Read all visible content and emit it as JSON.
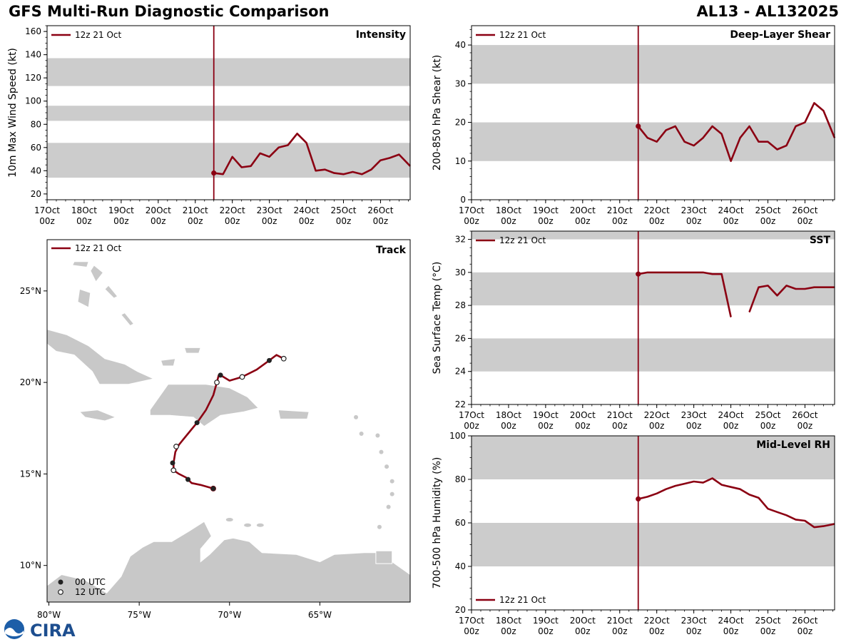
{
  "title_left": "GFS Multi-Run Diagnostic Comparison",
  "title_right": "AL13 - AL132025",
  "colors": {
    "series": "#8b0012",
    "band": "#cccccc",
    "land": "#c8c8c8",
    "land_edge": "#ffffff",
    "init_line": "#8b0012"
  },
  "time_axis": {
    "range": [
      0,
      9.8
    ],
    "ticks": [
      {
        "t": 0,
        "l1": "17Oct",
        "l2": "00z"
      },
      {
        "t": 1,
        "l1": "18Oct",
        "l2": "00z"
      },
      {
        "t": 2,
        "l1": "19Oct",
        "l2": "00z"
      },
      {
        "t": 3,
        "l1": "20Oct",
        "l2": "00z"
      },
      {
        "t": 4,
        "l1": "21Oct",
        "l2": "00z"
      },
      {
        "t": 5,
        "l1": "22Oct",
        "l2": "00z"
      },
      {
        "t": 6,
        "l1": "23Oct",
        "l2": "00z"
      },
      {
        "t": 7,
        "l1": "24Oct",
        "l2": "00z"
      },
      {
        "t": 8,
        "l1": "25Oct",
        "l2": "00z"
      },
      {
        "t": 9,
        "l1": "26Oct",
        "l2": "00z"
      }
    ],
    "init_time": 4.5
  },
  "legend_label": "12z 21 Oct",
  "chart_data": [
    {
      "id": "intensity",
      "type": "line",
      "title": "Intensity",
      "ylabel": "10m Max Wind Speed (kt)",
      "ylim": [
        15,
        165
      ],
      "yticks": [
        20,
        40,
        60,
        80,
        100,
        120,
        140,
        160
      ],
      "minor_step": 5,
      "bands": [
        [
          34,
          64
        ],
        [
          83,
          96
        ],
        [
          113,
          137
        ]
      ],
      "series": [
        {
          "name": "12z 21 Oct",
          "t": [
            4.5,
            4.75,
            5.0,
            5.25,
            5.5,
            5.75,
            6.0,
            6.25,
            6.5,
            6.75,
            7.0,
            7.25,
            7.5,
            7.75,
            8.0,
            8.25,
            8.5,
            8.75,
            9.0,
            9.25,
            9.5,
            9.8
          ],
          "values": [
            38,
            37,
            52,
            43,
            44,
            55,
            52,
            60,
            62,
            72,
            64,
            40,
            41,
            38,
            37,
            39,
            37,
            41,
            49,
            51,
            54,
            44
          ]
        }
      ],
      "legend_pos": "top-left"
    },
    {
      "id": "shear",
      "type": "line",
      "title": "Deep-Layer Shear",
      "ylabel": "200-850 hPa Shear (kt)",
      "ylim": [
        0,
        45
      ],
      "yticks": [
        0,
        10,
        20,
        30,
        40
      ],
      "minor_step": 2,
      "bands": [
        [
          10,
          20
        ],
        [
          30,
          40
        ]
      ],
      "series": [
        {
          "name": "12z 21 Oct",
          "t": [
            4.5,
            4.75,
            5.0,
            5.25,
            5.5,
            5.75,
            6.0,
            6.25,
            6.5,
            6.75,
            7.0,
            7.25,
            7.5,
            7.75,
            8.0,
            8.25,
            8.5,
            8.75,
            9.0,
            9.25,
            9.5,
            9.8
          ],
          "values": [
            19,
            16,
            15,
            18,
            19,
            15,
            14,
            16,
            19,
            17,
            10,
            16,
            19,
            15,
            15,
            13,
            14,
            19,
            20,
            25,
            23,
            16
          ]
        }
      ],
      "legend_pos": "top-left"
    },
    {
      "id": "sst",
      "type": "line",
      "title": "SST",
      "ylabel": "Sea Surface Temp (°C)",
      "ylim": [
        22,
        32.5
      ],
      "yticks": [
        22,
        24,
        26,
        28,
        30,
        32
      ],
      "minor_step": 0.5,
      "bands": [
        [
          24,
          26
        ],
        [
          28,
          30
        ],
        [
          32,
          32.5
        ]
      ],
      "series": [
        {
          "name": "12z 21 Oct",
          "t": [
            4.5,
            4.75,
            5.0,
            5.25,
            5.5,
            5.75,
            6.0,
            6.25,
            6.5,
            6.75,
            7.0,
            7.25,
            7.5,
            7.75,
            8.0,
            8.25,
            8.5,
            8.75,
            9.0,
            9.25,
            9.5,
            9.8
          ],
          "values": [
            29.9,
            30.0,
            30.0,
            30.0,
            30.0,
            30.0,
            30.0,
            30.0,
            29.9,
            29.9,
            27.3,
            null,
            27.6,
            29.1,
            29.2,
            28.6,
            29.2,
            29.0,
            29.0,
            29.1,
            29.1,
            29.1
          ]
        }
      ],
      "legend_pos": "top-left"
    },
    {
      "id": "rh",
      "type": "line",
      "title": "Mid-Level RH",
      "ylabel": "700-500 hPa Humidity (%)",
      "ylim": [
        20,
        100
      ],
      "yticks": [
        20,
        40,
        60,
        80,
        100
      ],
      "minor_step": 5,
      "bands": [
        [
          40,
          60
        ],
        [
          80,
          100
        ]
      ],
      "series": [
        {
          "name": "12z 21 Oct",
          "t": [
            4.5,
            4.75,
            5.0,
            5.25,
            5.5,
            5.75,
            6.0,
            6.25,
            6.5,
            6.75,
            7.0,
            7.25,
            7.5,
            7.75,
            8.0,
            8.25,
            8.5,
            8.75,
            9.0,
            9.25,
            9.5,
            9.8
          ],
          "values": [
            71,
            72,
            73.5,
            75.5,
            77,
            78,
            79,
            78.5,
            80.5,
            77.5,
            76.5,
            75.5,
            73,
            71.5,
            66.5,
            65,
            63.5,
            61.5,
            61,
            58,
            58.5,
            59.5
          ]
        }
      ],
      "legend_pos": "bottom-left"
    },
    {
      "id": "track",
      "type": "scatter",
      "title": "Track",
      "xlim": [
        -80.1,
        -60.0
      ],
      "ylim": [
        8.0,
        27.8
      ],
      "xticks": [
        {
          "v": -80,
          "label": "80°W"
        },
        {
          "v": -75,
          "label": "75°W"
        },
        {
          "v": -70,
          "label": "70°W"
        },
        {
          "v": -65,
          "label": "65°W"
        }
      ],
      "yticks": [
        {
          "v": 10,
          "label": "10°N"
        },
        {
          "v": 15,
          "label": "15°N"
        },
        {
          "v": 20,
          "label": "20°N"
        },
        {
          "v": 25,
          "label": "25°N"
        }
      ],
      "track": {
        "lon": [
          -70.9,
          -71.6,
          -72.1,
          -72.4,
          -72.8,
          -73.1,
          -73.1,
          -73.0,
          -72.8,
          -72.3,
          -71.8,
          -71.3,
          -70.9,
          -70.7,
          -70.6,
          -70.5,
          -70.0,
          -69.3,
          -68.5,
          -67.8,
          -67.4,
          -67.0
        ],
        "lat": [
          14.2,
          14.4,
          14.5,
          14.8,
          15.0,
          15.2,
          15.6,
          16.2,
          16.6,
          17.2,
          17.8,
          18.5,
          19.3,
          20.0,
          20.4,
          20.4,
          20.1,
          20.3,
          20.7,
          21.2,
          21.5,
          21.3
        ]
      },
      "obs00": [
        [
          -70.9,
          14.2
        ],
        [
          -72.3,
          14.7
        ],
        [
          -73.15,
          15.6
        ],
        [
          -71.8,
          17.8
        ],
        [
          -70.5,
          20.4
        ],
        [
          -67.8,
          21.2
        ]
      ],
      "obs12": [
        [
          -73.1,
          15.2
        ],
        [
          -72.95,
          16.5
        ],
        [
          -70.7,
          20.0
        ],
        [
          -69.3,
          20.3
        ],
        [
          -67.0,
          21.3
        ]
      ],
      "legend_items": [
        "00 UTC",
        "12 UTC"
      ]
    }
  ],
  "logo_text": "CIRA"
}
